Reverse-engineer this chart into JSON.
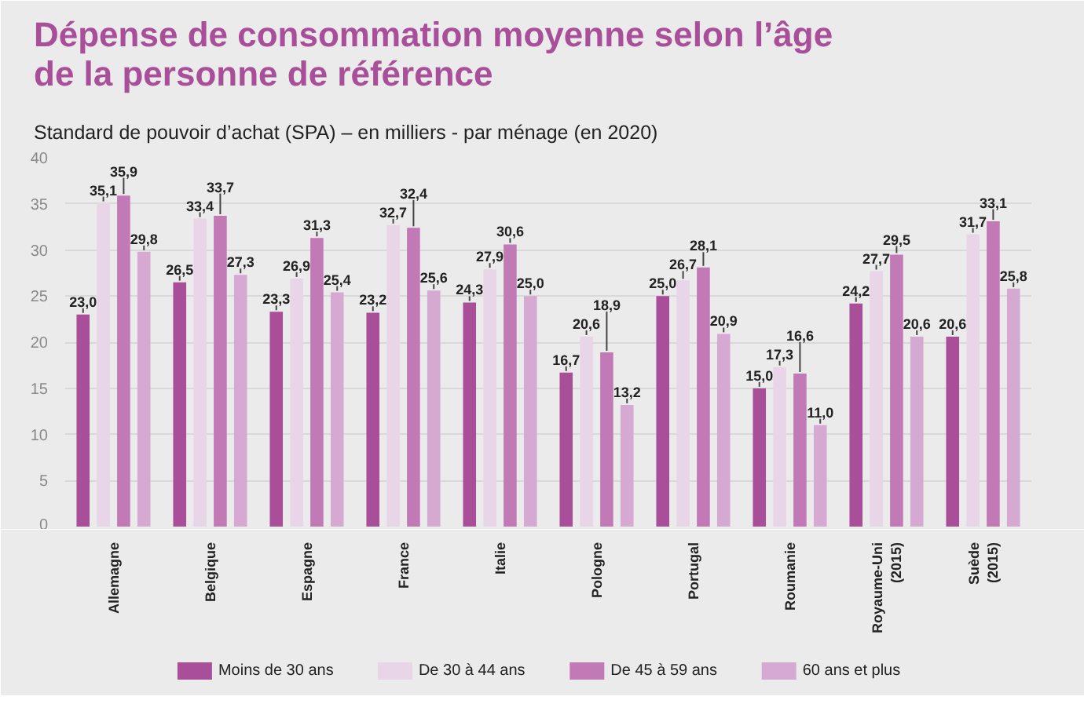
{
  "chart_data": {
    "type": "bar",
    "title": "Dépense de consommation moyenne selon l’âge de la personne de référence",
    "subtitle": "Standard de pouvoir d’achat (SPA) – en milliers - par ménage (en 2020)",
    "categories": [
      "Allemagne",
      "Belgique",
      "Espagne",
      "France",
      "Italie",
      "Pologne",
      "Portugal",
      "Roumanie",
      "Royaume-Uni\n(2015)",
      "Suède\n(2015)"
    ],
    "series": [
      {
        "name": "Moins de 30 ans",
        "color": "#a94f9a",
        "values": [
          23.0,
          26.5,
          23.3,
          23.2,
          24.3,
          16.7,
          25.0,
          15.0,
          24.2,
          20.6
        ],
        "value_labels": [
          "23,0",
          "26,5",
          "23,3",
          "23,2",
          "24,3",
          "16,7",
          "25,0",
          "15,0",
          "24,2",
          "20,6"
        ]
      },
      {
        "name": "De 30 à 44 ans",
        "color": "#e9d5e8",
        "values": [
          35.1,
          33.4,
          26.9,
          32.7,
          27.9,
          20.6,
          26.7,
          17.3,
          27.7,
          31.7
        ],
        "value_labels": [
          "35,1",
          "33,4",
          "26,9",
          "32,7",
          "27,9",
          "20,6",
          "26,7",
          "17,3",
          "27,7",
          "31,7"
        ]
      },
      {
        "name": "De 45 à 59 ans",
        "color": "#c17ab6",
        "values": [
          35.9,
          33.7,
          31.3,
          32.4,
          30.6,
          18.9,
          28.1,
          16.6,
          29.5,
          33.1
        ],
        "value_labels": [
          "35,9",
          "33,7",
          "31,3",
          "32,4",
          "30,6",
          "18,9",
          "28,1",
          "16,6",
          "29,5",
          "33,1"
        ]
      },
      {
        "name": "60 ans et plus",
        "color": "#d5a9d1",
        "values": [
          29.8,
          27.3,
          25.4,
          25.6,
          25.0,
          13.2,
          20.9,
          11.0,
          20.6,
          25.8
        ],
        "value_labels": [
          "29,8",
          "27,3",
          "25,4",
          "25,6",
          "25,0",
          "13,2",
          "20,9",
          "11,0",
          "20,6",
          "25,8"
        ]
      }
    ],
    "ylim": [
      0,
      40
    ],
    "yticks": [
      0,
      5,
      10,
      15,
      20,
      25,
      30,
      35,
      40
    ],
    "grid": "y",
    "legend": "bottom"
  }
}
